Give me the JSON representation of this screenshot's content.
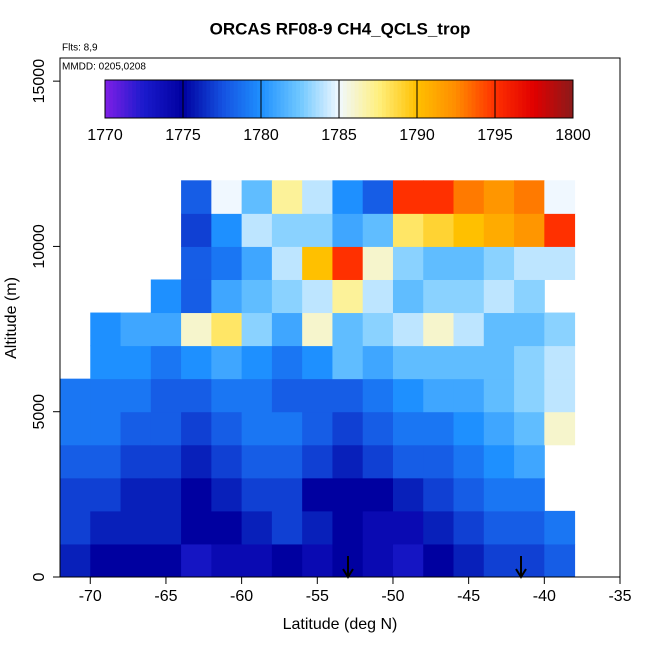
{
  "chart_data": {
    "type": "heatmap",
    "title": "ORCAS RF08-9 CH4_QCLS_trop",
    "annotations": [
      "Flts: 8,9",
      "MMDD: 0205,0208"
    ],
    "x_label": "Latitude (deg N)",
    "y_label": "Altitude (m)",
    "xbins": [
      -72,
      -70,
      -68,
      -66,
      -64,
      -62,
      -60,
      -58,
      -56,
      -54,
      -52,
      -50,
      -48,
      -46,
      -44,
      -42,
      -40,
      -38
    ],
    "ybins": [
      0,
      1000,
      2000,
      3000,
      4000,
      5000,
      6000,
      7000,
      8000,
      9000,
      10000,
      11000,
      12000
    ],
    "z": [
      [
        1776,
        1775,
        1775,
        1775,
        1773,
        1774,
        1774,
        1775,
        1774,
        1775,
        1774,
        1773,
        1775,
        1776,
        1777,
        1777,
        1778
      ],
      [
        1777,
        1776,
        1776,
        1776,
        1775,
        1775,
        1776,
        1777,
        1776,
        1775,
        1774,
        1774,
        1776,
        1777,
        1778,
        1778,
        1779
      ],
      [
        1777,
        1777,
        1776,
        1776,
        1775,
        1776,
        1777,
        1777,
        1775,
        1775,
        1775,
        1776,
        1777,
        1778,
        1779,
        1779,
        null
      ],
      [
        1778,
        1778,
        1777,
        1777,
        1776,
        1777,
        1778,
        1778,
        1777,
        1776,
        1777,
        1778,
        1778,
        1779,
        1780,
        1781,
        null
      ],
      [
        1779,
        1779,
        1778,
        1778,
        1777,
        1778,
        1779,
        1779,
        1778,
        1777,
        1778,
        1779,
        1779,
        1780,
        1781,
        1782,
        1786
      ],
      [
        1779,
        1779,
        1779,
        1778,
        1778,
        1779,
        1779,
        1778,
        1778,
        1778,
        1779,
        1780,
        1781,
        1781,
        1782,
        1783,
        1784
      ],
      [
        null,
        1780,
        1780,
        1779,
        1780,
        1781,
        1780,
        1779,
        1780,
        1782,
        1781,
        1782,
        1782,
        1782,
        1782,
        1783,
        1784
      ],
      [
        null,
        1780,
        1781,
        1781,
        1786,
        1788,
        1783,
        1781,
        1786,
        1782,
        1783,
        1784,
        1786,
        1784,
        1782,
        1782,
        1783
      ],
      [
        null,
        null,
        null,
        1780,
        1778,
        1781,
        1782,
        1783,
        1784,
        1787,
        1784,
        1782,
        1783,
        1783,
        1784,
        1783,
        null
      ],
      [
        null,
        null,
        null,
        null,
        1778,
        1779,
        1781,
        1784,
        1790,
        1795,
        1786,
        1783,
        1782,
        1782,
        1783,
        1784,
        1784
      ],
      [
        null,
        null,
        null,
        null,
        1777,
        1780,
        1784,
        1783,
        1783,
        1781,
        1782,
        1788,
        1789,
        1790,
        1791,
        1792,
        1795
      ],
      [
        null,
        null,
        null,
        null,
        1778,
        1785,
        1782,
        1787,
        1784,
        1780,
        1778,
        1795,
        1795,
        1793,
        1792,
        1793,
        1785
      ]
    ],
    "zlim": [
      1770,
      1800
    ],
    "zticks": [
      1770,
      1775,
      1780,
      1785,
      1790,
      1795,
      1800
    ],
    "colors": [
      "#7f1fe6",
      "#1a1acc",
      "#0000a0",
      "#1450e0",
      "#1e90ff",
      "#70c8ff",
      "#f0f8ff",
      "#fff080",
      "#ffc000",
      "#ff8c00",
      "#ff3000",
      "#e00000",
      "#8b1a1a"
    ],
    "xlim": [
      -72,
      -35
    ],
    "xticks": [
      -70,
      -65,
      -60,
      -55,
      -50,
      -45,
      -40,
      -35
    ],
    "ylim": [
      0,
      15700
    ],
    "yticks": [
      0,
      5000,
      10000,
      15000
    ]
  }
}
